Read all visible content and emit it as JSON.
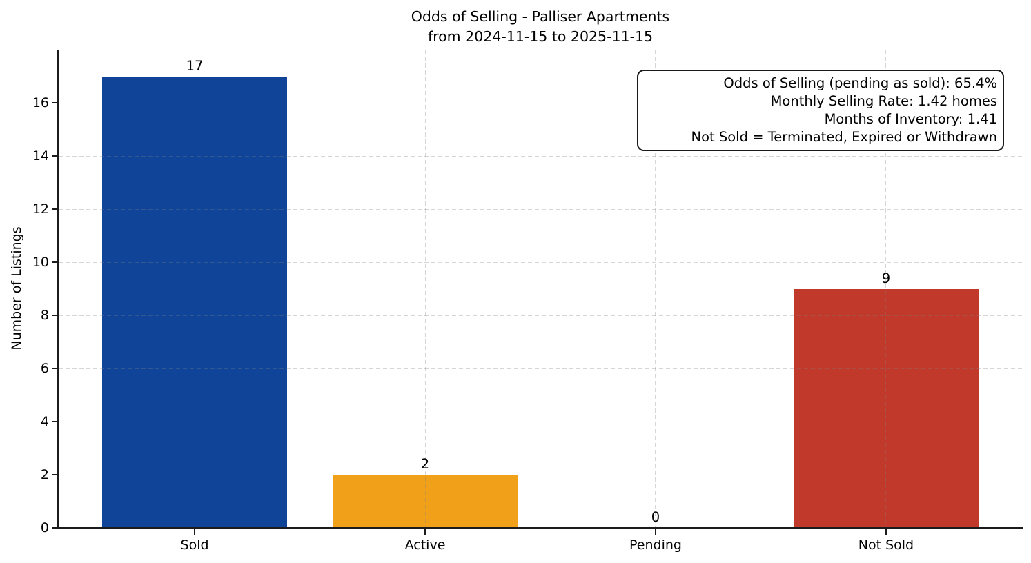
{
  "chart_data": {
    "type": "bar",
    "title": "Odds of Selling - Palliser Apartments",
    "subtitle": "from 2024-11-15 to 2025-11-15",
    "ylabel": "Number of Listings",
    "categories": [
      "Sold",
      "Active",
      "Pending",
      "Not Sold"
    ],
    "values": [
      17,
      2,
      0,
      9
    ],
    "bar_colors": [
      "#0F4499",
      "#F1A019",
      "#808080",
      "#C0392B"
    ],
    "ylim": [
      0,
      18
    ],
    "yticks": [
      0,
      2,
      4,
      6,
      8,
      10,
      12,
      14,
      16
    ],
    "grid": {
      "visible": true,
      "style": "dashed",
      "drawn_over_bars": true
    },
    "legend_position": "none",
    "annotation": {
      "lines": [
        "Odds of Selling (pending as sold): 65.4%",
        "Monthly Selling Rate: 1.42 homes",
        "Months of Inventory: 1.41",
        "Not Sold = Terminated, Expired or Withdrawn"
      ]
    }
  }
}
